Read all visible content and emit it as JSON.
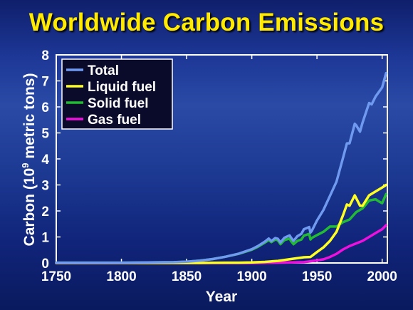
{
  "slide": {
    "title": "Worldwide Carbon Emissions"
  },
  "chart_data": {
    "type": "line",
    "xlabel": "Year",
    "ylabel_main": "Carbon (10",
    "ylabel_sup": "9",
    "ylabel_tail": " metric tons)",
    "xlim": [
      1750,
      2004
    ],
    "ylim": [
      0,
      8
    ],
    "xticks": [
      1750,
      1800,
      1850,
      1900,
      1950,
      2000
    ],
    "yticks": [
      0,
      1,
      2,
      3,
      4,
      5,
      6,
      7,
      8
    ],
    "legend_position": "top-left",
    "grid": false,
    "series": [
      {
        "name": "Total",
        "color": "#6f9af0",
        "x": [
          1750,
          1800,
          1840,
          1850,
          1860,
          1870,
          1880,
          1890,
          1900,
          1905,
          1910,
          1913,
          1915,
          1918,
          1920,
          1922,
          1925,
          1929,
          1930,
          1932,
          1935,
          1938,
          1940,
          1944,
          1945,
          1946,
          1950,
          1955,
          1960,
          1965,
          1970,
          1973,
          1975,
          1979,
          1980,
          1983,
          1985,
          1990,
          1992,
          1995,
          2000,
          2003
        ],
        "y": [
          0.01,
          0.01,
          0.03,
          0.05,
          0.09,
          0.15,
          0.24,
          0.36,
          0.53,
          0.66,
          0.82,
          0.94,
          0.84,
          0.96,
          0.93,
          0.79,
          0.97,
          1.06,
          0.98,
          0.85,
          1.03,
          1.12,
          1.3,
          1.38,
          1.17,
          1.23,
          1.63,
          2.04,
          2.58,
          3.13,
          4.05,
          4.6,
          4.6,
          5.35,
          5.3,
          5.05,
          5.4,
          6.15,
          6.1,
          6.4,
          6.75,
          7.3
        ]
      },
      {
        "name": "Liquid fuel",
        "color": "#ffff22",
        "x": [
          1750,
          1860,
          1870,
          1880,
          1890,
          1900,
          1910,
          1920,
          1930,
          1940,
          1945,
          1950,
          1955,
          1960,
          1965,
          1970,
          1973,
          1975,
          1979,
          1980,
          1983,
          1985,
          1990,
          1995,
          2000,
          2003
        ],
        "y": [
          0.0,
          0.0,
          0.005,
          0.01,
          0.01,
          0.02,
          0.04,
          0.08,
          0.15,
          0.22,
          0.23,
          0.42,
          0.6,
          0.85,
          1.2,
          1.84,
          2.25,
          2.2,
          2.6,
          2.5,
          2.2,
          2.2,
          2.6,
          2.75,
          2.9,
          3.0
        ]
      },
      {
        "name": "Solid fuel",
        "color": "#22bb33",
        "x": [
          1750,
          1800,
          1840,
          1850,
          1860,
          1870,
          1880,
          1890,
          1900,
          1905,
          1910,
          1913,
          1915,
          1918,
          1920,
          1922,
          1925,
          1929,
          1930,
          1932,
          1935,
          1938,
          1940,
          1944,
          1945,
          1946,
          1950,
          1955,
          1960,
          1965,
          1970,
          1975,
          1980,
          1985,
          1990,
          1995,
          1998,
          2000,
          2003
        ],
        "y": [
          0.01,
          0.01,
          0.03,
          0.05,
          0.09,
          0.15,
          0.24,
          0.35,
          0.51,
          0.63,
          0.78,
          0.88,
          0.8,
          0.9,
          0.87,
          0.72,
          0.88,
          0.94,
          0.85,
          0.72,
          0.85,
          0.9,
          1.05,
          1.12,
          0.9,
          0.96,
          1.07,
          1.2,
          1.4,
          1.4,
          1.57,
          1.67,
          1.95,
          2.1,
          2.4,
          2.45,
          2.35,
          2.3,
          2.65
        ]
      },
      {
        "name": "Gas fuel",
        "color": "#ee11dd",
        "x": [
          1750,
          1900,
          1920,
          1930,
          1940,
          1950,
          1955,
          1960,
          1965,
          1970,
          1975,
          1980,
          1985,
          1990,
          1995,
          2000,
          2003
        ],
        "y": [
          0.0,
          0.0,
          0.01,
          0.02,
          0.03,
          0.1,
          0.14,
          0.23,
          0.35,
          0.52,
          0.65,
          0.75,
          0.85,
          1.0,
          1.15,
          1.3,
          1.45
        ]
      }
    ]
  }
}
